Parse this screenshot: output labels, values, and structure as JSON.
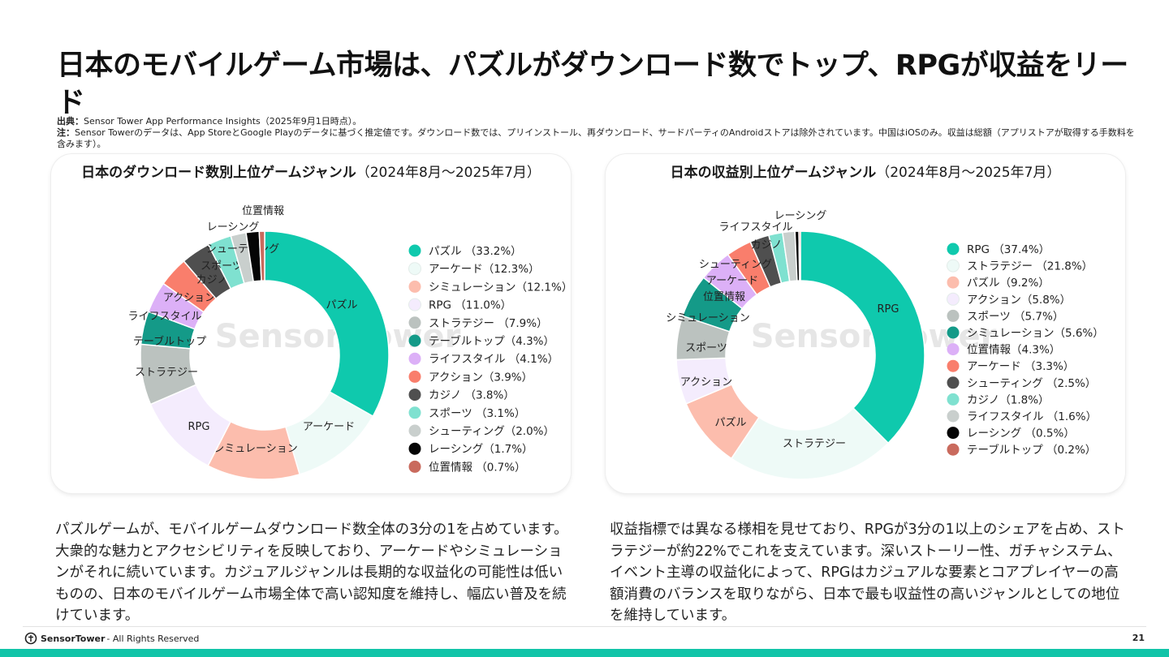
{
  "title": "日本のモバイルゲーム市場は、パズルがダウンロード数でトップ、RPGが収益をリード",
  "notes": {
    "source_label": "出典：",
    "source_text": "Sensor Tower App Performance Insights（2025年9月1日時点）。",
    "note_label": "注：",
    "note_text": "Sensor Towerのデータは、App StoreとGoogle Playのデータに基づく推定値です。ダウンロード数では、プリインストール、再ダウンロード、サードパーティのAndroidストアは除外されています。中国はiOSのみ。収益は総額（アプリストアが取得する手数料を含みます）。"
  },
  "watermark": "Sensor Tower",
  "chart_data": [
    {
      "type": "pie",
      "title": "日本のダウンロード数別上位ゲームジャンル",
      "subtitle": "（2024年8月〜2025年7月）",
      "segments": [
        {
          "name": "パズル",
          "value": 33.2,
          "legend": "パズル （33.2%）",
          "color": "#0fc9ad"
        },
        {
          "name": "アーケード",
          "value": 12.3,
          "legend": "アーケード（12.3%）",
          "color": "#eefaf7"
        },
        {
          "name": "シミュレーション",
          "value": 12.1,
          "legend": "シミュレーション（12.1%）",
          "color": "#fcbdad"
        },
        {
          "name": "RPG",
          "value": 11.0,
          "legend": "RPG （11.0%）",
          "color": "#f4ecfd"
        },
        {
          "name": "ストラテジー",
          "value": 7.9,
          "legend": "ストラテジー （7.9%）",
          "color": "#bbc2bf"
        },
        {
          "name": "テーブルトップ",
          "value": 4.3,
          "legend": "テーブルトップ（4.3%）",
          "color": "#149a88"
        },
        {
          "name": "ライフスタイル",
          "value": 4.1,
          "legend": "ライフスタイル （4.1%）",
          "color": "#dcb0f7"
        },
        {
          "name": "アクション",
          "value": 3.9,
          "legend": "アクション（3.9%）",
          "color": "#f97e6c"
        },
        {
          "name": "カジノ",
          "value": 3.8,
          "legend": "カジノ （3.8%）",
          "color": "#4f4f4f"
        },
        {
          "name": "スポーツ",
          "value": 3.1,
          "legend": "スポーツ （3.1%）",
          "color": "#7fe1d0"
        },
        {
          "name": "シューティング",
          "value": 2.0,
          "legend": "シューティング（2.0%）",
          "color": "#c9cfcd"
        },
        {
          "name": "レーシング",
          "value": 1.7,
          "legend": "レーシング（1.7%）",
          "color": "#050505"
        },
        {
          "name": "位置情報",
          "value": 0.7,
          "legend": "位置情報 （0.7%）",
          "color": "#c96a5d"
        }
      ]
    },
    {
      "type": "pie",
      "title": "日本の収益別上位ゲームジャンル",
      "subtitle": "（2024年8月〜2025年7月）",
      "segments": [
        {
          "name": "RPG",
          "value": 37.4,
          "legend": "RPG （37.4%）",
          "color": "#0fc9ad"
        },
        {
          "name": "ストラテジー",
          "value": 21.8,
          "legend": "ストラテジー （21.8%）",
          "color": "#eefaf7"
        },
        {
          "name": "パズル",
          "value": 9.2,
          "legend": "パズル（9.2%）",
          "color": "#fcbdad"
        },
        {
          "name": "アクション",
          "value": 5.8,
          "legend": "アクション（5.8%）",
          "color": "#f4ecfd"
        },
        {
          "name": "スポーツ",
          "value": 5.7,
          "legend": "スポーツ （5.7%）",
          "color": "#bbc2bf"
        },
        {
          "name": "シミュレーション",
          "value": 5.6,
          "legend": "シミュレーション（5.6%）",
          "color": "#149a88"
        },
        {
          "name": "位置情報",
          "value": 4.3,
          "legend": "位置情報（4.3%）",
          "color": "#dcb0f7"
        },
        {
          "name": "アーケード",
          "value": 3.3,
          "legend": "アーケード （3.3%）",
          "color": "#f97e6c"
        },
        {
          "name": "シューティング",
          "value": 2.5,
          "legend": "シューティング （2.5%）",
          "color": "#4f4f4f"
        },
        {
          "name": "カジノ",
          "value": 1.8,
          "legend": "カジノ（1.8%）",
          "color": "#7fe1d0"
        },
        {
          "name": "ライフスタイル",
          "value": 1.6,
          "legend": "ライフスタイル （1.6%）",
          "color": "#c9cfcd"
        },
        {
          "name": "レーシング",
          "value": 0.5,
          "legend": "レーシング （0.5%）",
          "color": "#050505"
        },
        {
          "name": "テーブルトップ",
          "value": 0.2,
          "legend": "テーブルトップ （0.2%）",
          "color": "#c96a5d"
        }
      ]
    }
  ],
  "paragraphs": {
    "left": "パズルゲームが、モバイルゲームダウンロード数全体の3分の1を占めています。大衆的な魅力とアクセシビリティを反映しており、アーケードやシミュレーションがそれに続いています。カジュアルジャンルは長期的な収益化の可能性は低いものの、日本のモバイルゲーム市場全体で高い認知度を維持し、幅広い普及を続けています。",
    "right": "収益指標では異なる様相を見せており、RPGが3分の1以上のシェアを占め、ストラテジーが約22%でこれを支えています。深いストーリー性、ガチャシステム、イベント主導の収益化によって、RPGはカジュアルな要素とコアプレイヤーの高額消費のバランスを取りながら、日本で最も収益性の高いジャンルとしての地位を維持しています。"
  },
  "footer": {
    "brand": "SensorTower",
    "rights": "- All Rights Reserved",
    "page": "21"
  }
}
